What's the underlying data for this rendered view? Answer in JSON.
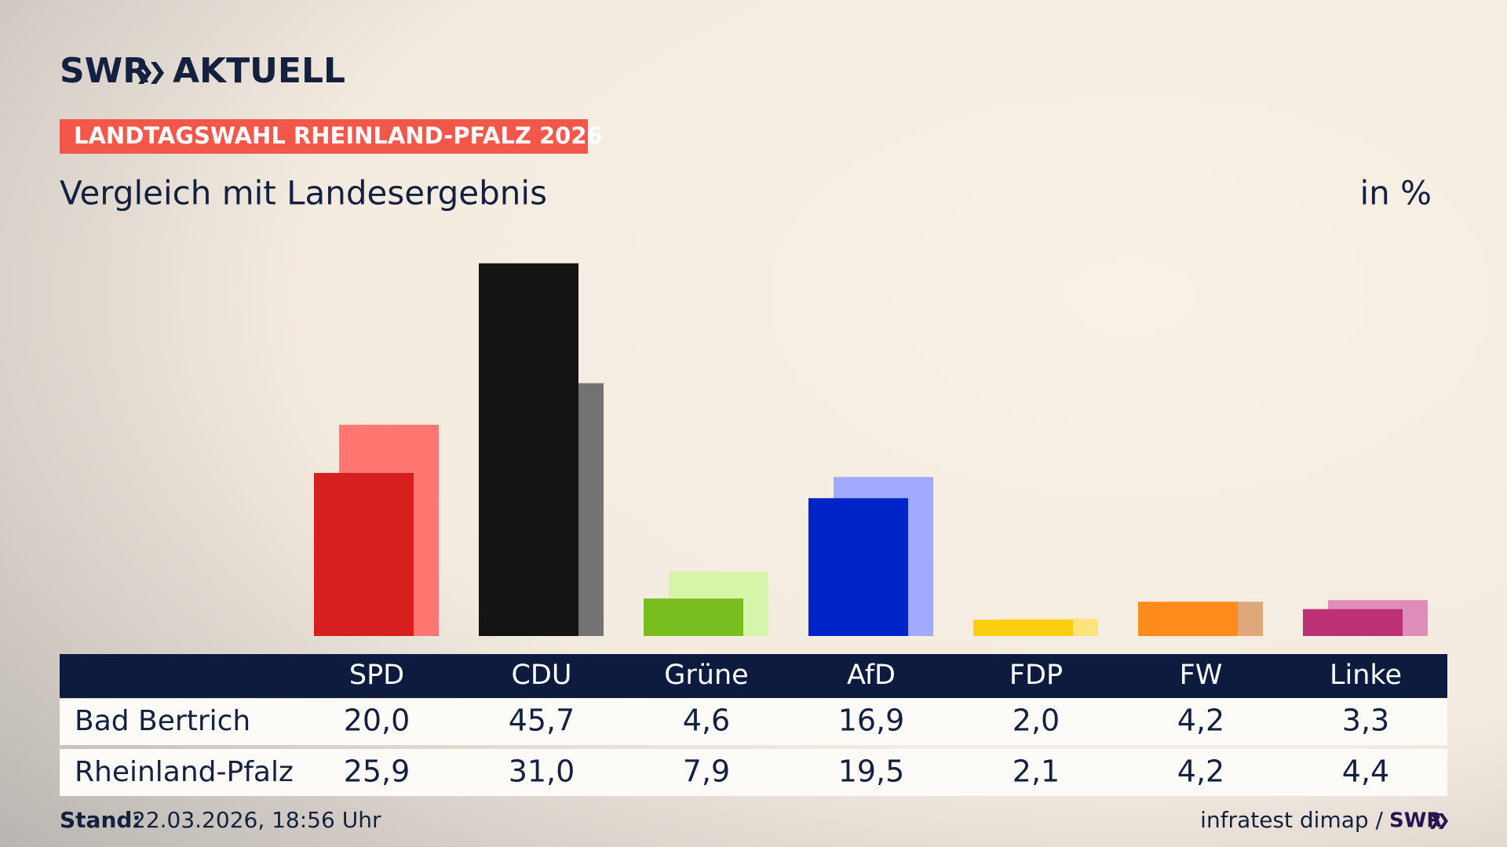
{
  "brand": {
    "name": "SWR",
    "suffix": "AKTUELL"
  },
  "chart_data": {
    "type": "bar",
    "banner": "LANDTAGSWAHL RHEINLAND-PFALZ 2026",
    "title": "Vergleich mit Landesergebnis",
    "unit": "in %",
    "categories": [
      "SPD",
      "CDU",
      "Grüne",
      "AfD",
      "FDP",
      "FW",
      "Linke"
    ],
    "series": [
      {
        "name": "Bad Bertrich",
        "colors": [
          "#d81f1f",
          "#141414",
          "#78be1e",
          "#0024c8",
          "#f9cf10",
          "#ff8c1a",
          "#be3075"
        ],
        "values": [
          20.0,
          45.7,
          4.6,
          16.9,
          2.0,
          4.2,
          3.3
        ],
        "value_labels": [
          "20,0",
          "45,7",
          "4,6",
          "16,9",
          "2,0",
          "4,2",
          "3,3"
        ]
      },
      {
        "name": "Rheinland-Pfalz",
        "colors": [
          "#ff7570",
          "#747372",
          "#d6f5a8",
          "#a0aaff",
          "#fde47a",
          "#e0a878",
          "#e08cb8"
        ],
        "values": [
          25.9,
          31.0,
          7.9,
          19.5,
          2.1,
          4.2,
          4.4
        ],
        "value_labels": [
          "25,9",
          "31,0",
          "7,9",
          "19,5",
          "2,1",
          "4,2",
          "4,4"
        ]
      }
    ]
  },
  "footer": {
    "stand_label": "Stand:",
    "stand": "22.03.2026, 18:56 Uhr",
    "source": "infratest dimap /",
    "source_brand": "SWR"
  }
}
